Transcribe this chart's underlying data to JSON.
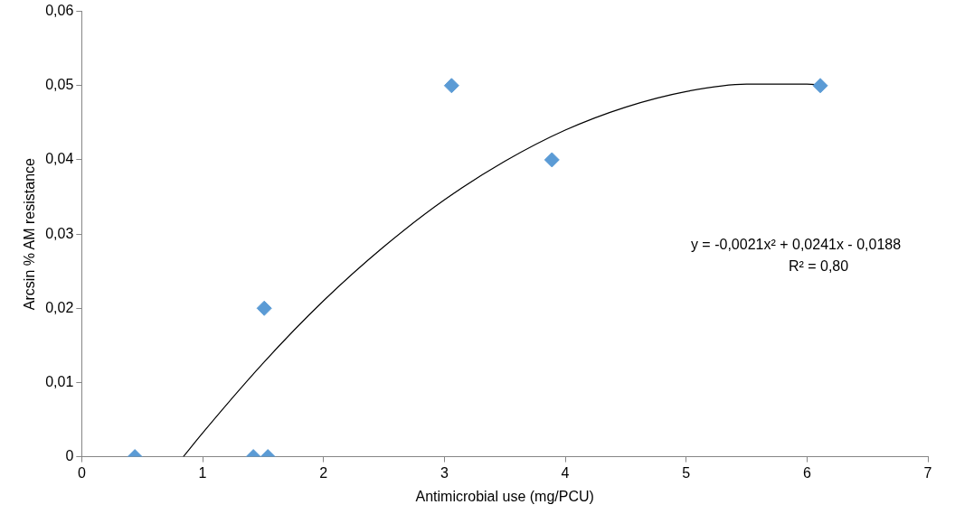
{
  "chart_data": {
    "type": "scatter",
    "xlabel": "Antimicrobial use (mg/PCU)",
    "ylabel": "Arcsin % AM resistance",
    "xlim": [
      0,
      7
    ],
    "xticks": [
      0,
      1,
      2,
      3,
      4,
      5,
      6,
      7
    ],
    "ylim": [
      0,
      0.06
    ],
    "yticks": [
      {
        "value": 0,
        "label": "0"
      },
      {
        "value": 0.01,
        "label": "0,01"
      },
      {
        "value": 0.02,
        "label": "0,02"
      },
      {
        "value": 0.03,
        "label": "0,03"
      },
      {
        "value": 0.04,
        "label": "0,04"
      },
      {
        "value": 0.05,
        "label": "0,05"
      },
      {
        "value": 0.06,
        "label": "0,06"
      }
    ],
    "grid": false,
    "legend": false,
    "series": [
      {
        "color": "#5b9bd5",
        "marker": "diamond",
        "x": [
          0.44,
          1.42,
          1.54,
          1.51,
          3.06,
          3.89,
          6.11
        ],
        "values": [
          0,
          0,
          0,
          0.02,
          0.05,
          0.04,
          0.05
        ]
      },
      {
        "type": "line",
        "color": "#000000",
        "marker": "none",
        "x": [
          0.84,
          1,
          1.5,
          2,
          2.5,
          3,
          3.5,
          4,
          4.5,
          5,
          5.5,
          6,
          6.11
        ],
        "values": [
          0,
          0.0032,
          0.0126,
          0.021,
          0.0283,
          0.0346,
          0.0398,
          0.044,
          0.0471,
          0.0492,
          0.0502,
          0.0502,
          0.0501
        ]
      }
    ],
    "annotations": [
      "y = -0,0021x² + 0,0241x - 0,0188",
      "R² = 0,80"
    ]
  }
}
